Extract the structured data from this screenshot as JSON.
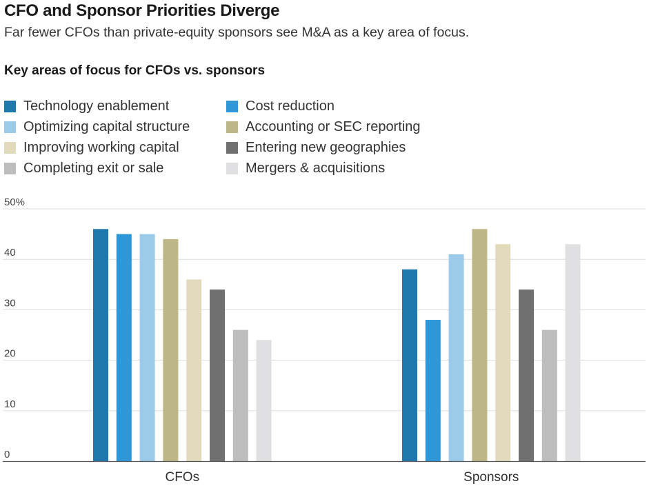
{
  "header": {
    "title": "CFO and Sponsor Priorities Diverge",
    "subtitle": "Far fewer CFOs than private-equity sponsors see M&A as a key area of focus."
  },
  "chart_data": {
    "type": "bar",
    "title": "Key areas of focus for CFOs vs. sponsors",
    "xlabel": "",
    "ylabel": "",
    "ylim": [
      0,
      50
    ],
    "y_ticks": [
      "0",
      "10",
      "20",
      "30",
      "40",
      "50%"
    ],
    "y_tick_values": [
      0,
      10,
      20,
      30,
      40,
      50
    ],
    "grid": true,
    "legend_position": "top",
    "categories": [
      "CFOs",
      "Sponsors"
    ],
    "series": [
      {
        "name": "Technology enablement",
        "color": "#1f78ac",
        "values": [
          46,
          38
        ]
      },
      {
        "name": "Cost reduction",
        "color": "#2d97d8",
        "values": [
          45,
          28
        ]
      },
      {
        "name": "Optimizing capital structure",
        "color": "#9ccbea",
        "values": [
          45,
          41
        ]
      },
      {
        "name": "Accounting or SEC reporting",
        "color": "#bdb787",
        "values": [
          44,
          46
        ]
      },
      {
        "name": "Improving working capital",
        "color": "#e1dbbb",
        "values": [
          36,
          43
        ]
      },
      {
        "name": "Entering new geographies",
        "color": "#707070",
        "values": [
          34,
          34
        ]
      },
      {
        "name": "Completing exit or sale",
        "color": "#bdbdbd",
        "values": [
          26,
          26
        ]
      },
      {
        "name": "Mergers & acquisitions",
        "color": "#e0e0e2",
        "values": [
          24,
          43
        ]
      }
    ]
  }
}
